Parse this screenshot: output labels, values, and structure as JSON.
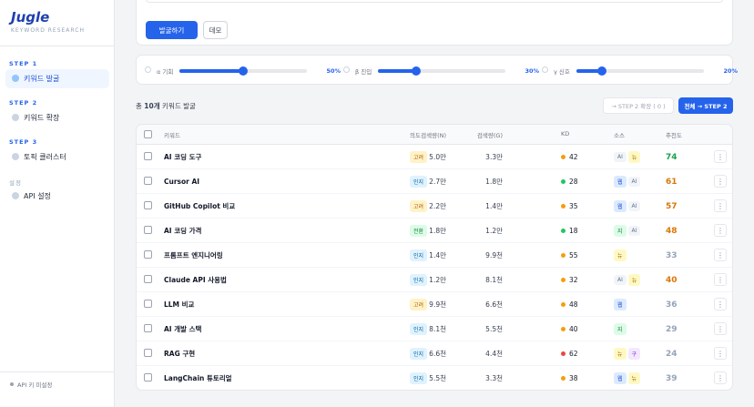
{
  "sidebar": {
    "logo": "Jugle",
    "tagline": "KEYWORD RESEARCH",
    "sections": [
      {
        "step": "STEP 1",
        "item": "키워드 발굴",
        "active": true
      },
      {
        "step": "STEP 2",
        "item": "키워드 확장",
        "active": false
      },
      {
        "step": "STEP 3",
        "item": "토픽 클러스터",
        "active": false
      },
      {
        "step": "설정",
        "item": "API 설정",
        "active": false
      }
    ],
    "status": "API 키 미설정"
  },
  "toolbar": {
    "primary": "발굴하기",
    "secondary": "데모"
  },
  "sliders": [
    {
      "label": "α 기회",
      "value": "50%"
    },
    {
      "label": "β 진입",
      "value": "30%"
    },
    {
      "label": "γ 신호",
      "value": "20%"
    }
  ],
  "summary": {
    "prefix": "총",
    "count": "10개",
    "suffix": "키워드 발굴",
    "expand_button": "→ STEP 2 확장 ( 0 )",
    "all_button": "전체 → STEP 2"
  },
  "table": {
    "headers": [
      "키워드",
      "의도",
      "검색량(N)",
      "검색량(G)",
      "KD",
      "소스",
      "추천도"
    ],
    "badge_colors": {
      "고려": [
        "#fef3c7",
        "#b45309"
      ],
      "인지": [
        "#e0f2fe",
        "#0369a1"
      ],
      "전환": [
        "#dcfce7",
        "#15803d"
      ],
      "웹": [
        "#dbeafe",
        "#1d4ed8"
      ],
      "AI": [
        "#f1f5f9",
        "#64748b"
      ],
      "뉴": [
        "#fef9c3",
        "#a16207"
      ],
      "지": [
        "#dcfce7",
        "#15803d"
      ],
      "구": [
        "#f3e8ff",
        "#7e22ce"
      ]
    },
    "rows": [
      [
        "AI 코딩 도구",
        "고려",
        "5.0만",
        "3.3만",
        42,
        [
          "AI",
          "뉴"
        ],
        74
      ],
      [
        "Cursor AI",
        "인지",
        "2.7만",
        "1.8만",
        28,
        [
          "웹",
          "AI"
        ],
        61
      ],
      [
        "GitHub Copilot 비교",
        "고려",
        "2.2만",
        "1.4만",
        35,
        [
          "웹",
          "AI"
        ],
        57
      ],
      [
        "AI 코딩 가격",
        "전환",
        "1.8만",
        "1.2만",
        18,
        [
          "지",
          "AI"
        ],
        48
      ],
      [
        "프롬프트 엔지니어링",
        "인지",
        "1.4만",
        "9.9천",
        55,
        [
          "뉴"
        ],
        33
      ],
      [
        "Claude API 사용법",
        "인지",
        "1.2만",
        "8.1천",
        32,
        [
          "AI",
          "뉴"
        ],
        40
      ],
      [
        "LLM 비교",
        "고려",
        "9.9천",
        "6.6천",
        48,
        [
          "웹"
        ],
        36
      ],
      [
        "AI 개발 스택",
        "인지",
        "8.1천",
        "5.5천",
        40,
        [
          "지"
        ],
        29
      ],
      [
        "RAG 구현",
        "인지",
        "6.6천",
        "4.4천",
        62,
        [
          "뉴",
          "구"
        ],
        24
      ],
      [
        "LangChain 튜토리얼",
        "인지",
        "5.5천",
        "3.3천",
        38,
        [
          "웹",
          "뉴"
        ],
        39
      ]
    ]
  }
}
